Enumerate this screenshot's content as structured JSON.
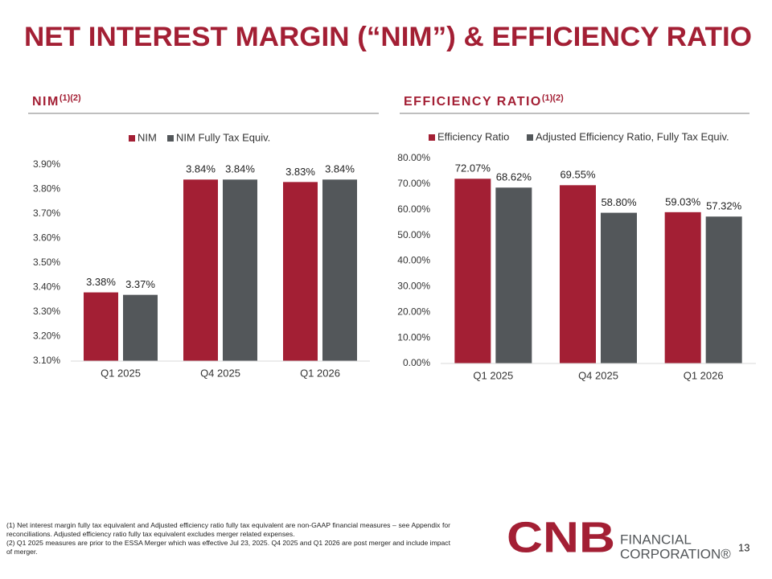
{
  "title": "NET INTEREST MARGIN (“NIM”) & EFFICIENCY RATIO",
  "footnotes": [
    "(1) Net interest margin fully tax equivalent and Adjusted efficiency ratio fully tax equivalent are non-GAAP financial measures – see Appendix for reconciliations. Adjusted efficiency ratio fully tax equivalent excludes merger related expenses.",
    "(2) Q1 2025 measures are prior to the ESSA Merger which was effective Jul 23, 2025. Q4 2025 and Q1 2026 are post merger and include impact of merger."
  ],
  "page_number": "13",
  "logo": {
    "mark": "CNB",
    "line1": "FINANCIAL",
    "line2": "CORPORATION®"
  },
  "chart_data": [
    {
      "type": "bar",
      "title": "NIM",
      "title_note": "(1)(2)",
      "categories": [
        "Q1 2025",
        "Q4 2025",
        "Q1 2026"
      ],
      "series": [
        {
          "name": "NIM",
          "color": "#a31f34",
          "values": [
            3.38,
            3.84,
            3.83
          ],
          "value_labels": [
            "3.38%",
            "3.84%",
            "3.83%"
          ]
        },
        {
          "name": "NIM Fully Tax Equiv.",
          "color": "#53575a",
          "values": [
            3.37,
            3.84,
            3.84
          ],
          "value_labels": [
            "3.37%",
            "3.84%",
            "3.84%"
          ]
        }
      ],
      "ylim": [
        3.1,
        3.9
      ],
      "yticks": [
        {
          "value": 3.1,
          "label": "3.10%"
        },
        {
          "value": 3.2,
          "label": "3.20%"
        },
        {
          "value": 3.3,
          "label": "3.30%"
        },
        {
          "value": 3.4,
          "label": "3.40%"
        },
        {
          "value": 3.5,
          "label": "3.50%"
        },
        {
          "value": 3.6,
          "label": "3.60%"
        },
        {
          "value": 3.7,
          "label": "3.70%"
        },
        {
          "value": 3.8,
          "label": "3.80%"
        },
        {
          "value": 3.9,
          "label": "3.90%"
        }
      ],
      "grid": false
    },
    {
      "type": "bar",
      "title": "EFFICIENCY RATIO",
      "title_note": "(1)(2)",
      "categories": [
        "Q1 2025",
        "Q4 2025",
        "Q1 2026"
      ],
      "series": [
        {
          "name": "Efficiency Ratio",
          "color": "#a31f34",
          "values": [
            72.07,
            69.55,
            59.03
          ],
          "value_labels": [
            "72.07%",
            "69.55%",
            "59.03%"
          ]
        },
        {
          "name": "Adjusted Efficiency Ratio, Fully Tax Equiv.",
          "color": "#53575a",
          "values": [
            68.62,
            58.8,
            57.32
          ],
          "value_labels": [
            "68.62%",
            "58.80%",
            "57.32%"
          ]
        }
      ],
      "ylim": [
        0,
        80
      ],
      "yticks": [
        {
          "value": 0,
          "label": "0.00%"
        },
        {
          "value": 10,
          "label": "10.00%"
        },
        {
          "value": 20,
          "label": "20.00%"
        },
        {
          "value": 30,
          "label": "30.00%"
        },
        {
          "value": 40,
          "label": "40.00%"
        },
        {
          "value": 50,
          "label": "50.00%"
        },
        {
          "value": 60,
          "label": "60.00%"
        },
        {
          "value": 70,
          "label": "70.00%"
        },
        {
          "value": 80,
          "label": "80.00%"
        }
      ],
      "grid": false
    }
  ]
}
